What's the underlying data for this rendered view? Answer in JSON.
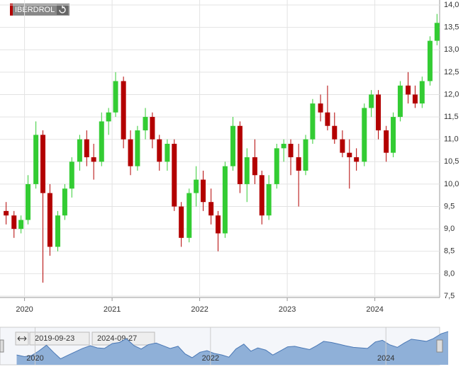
{
  "chart_data": {
    "type": "candlestick",
    "instrument": "IBERDROL",
    "up_color": "#33cc33",
    "down_color": "#b30000",
    "grid": true,
    "xlim": [
      2019.72,
      2024.74
    ],
    "xticks": [
      2020,
      2021,
      2022,
      2023,
      2024
    ],
    "ylim": [
      7.5,
      14.0
    ],
    "yticks": [
      {
        "value": 7.5,
        "label": "7,5"
      },
      {
        "value": 8,
        "label": "8,0"
      },
      {
        "value": 8.5,
        "label": "8,5"
      },
      {
        "value": 9,
        "label": "9,0"
      },
      {
        "value": 9.5,
        "label": "9,5"
      },
      {
        "value": 10,
        "label": "10,0"
      },
      {
        "value": 10.5,
        "label": "10,5"
      },
      {
        "value": 11,
        "label": "11,0"
      },
      {
        "value": 11.5,
        "label": "11,5"
      },
      {
        "value": 12,
        "label": "12,0"
      },
      {
        "value": 12.5,
        "label": "12,5"
      },
      {
        "value": 13,
        "label": "13,0"
      },
      {
        "value": 13.5,
        "label": "13,5"
      },
      {
        "value": 14,
        "label": "14,0"
      }
    ],
    "x": [
      2019.79,
      2019.88,
      2019.96,
      2020.04,
      2020.13,
      2020.21,
      2020.29,
      2020.38,
      2020.46,
      2020.54,
      2020.63,
      2020.71,
      2020.79,
      2020.88,
      2020.96,
      2021.04,
      2021.13,
      2021.21,
      2021.29,
      2021.38,
      2021.46,
      2021.54,
      2021.63,
      2021.71,
      2021.79,
      2021.88,
      2021.96,
      2022.04,
      2022.13,
      2022.21,
      2022.29,
      2022.38,
      2022.46,
      2022.54,
      2022.63,
      2022.71,
      2022.79,
      2022.88,
      2022.96,
      2023.04,
      2023.13,
      2023.21,
      2023.29,
      2023.38,
      2023.46,
      2023.54,
      2023.63,
      2023.71,
      2023.79,
      2023.88,
      2023.96,
      2024.04,
      2024.13,
      2024.21,
      2024.29,
      2024.38,
      2024.46,
      2024.54,
      2024.63,
      2024.71
    ],
    "open": [
      9.4,
      9.3,
      9.0,
      9.2,
      10.0,
      11.1,
      9.8,
      8.6,
      9.3,
      9.9,
      10.5,
      11.0,
      10.6,
      10.5,
      11.4,
      11.6,
      12.3,
      11.0,
      10.4,
      11.2,
      11.5,
      11.0,
      10.5,
      10.9,
      9.5,
      8.8,
      9.8,
      10.1,
      9.6,
      9.3,
      8.9,
      10.4,
      11.3,
      10.0,
      10.6,
      10.2,
      9.3,
      10.0,
      10.8,
      10.9,
      10.6,
      10.3,
      11.0,
      11.8,
      11.6,
      11.3,
      11.0,
      10.7,
      10.6,
      10.5,
      11.7,
      12.0,
      11.2,
      10.7,
      11.5,
      12.2,
      12.0,
      11.8,
      12.3,
      13.2
    ],
    "high": [
      9.6,
      9.4,
      9.3,
      10.2,
      11.4,
      11.2,
      10.0,
      9.4,
      10.0,
      10.6,
      11.1,
      11.2,
      10.9,
      11.6,
      11.7,
      12.5,
      12.4,
      11.2,
      11.3,
      11.7,
      11.6,
      11.1,
      11.0,
      11.0,
      9.6,
      9.9,
      10.4,
      10.3,
      9.9,
      9.4,
      10.5,
      11.5,
      11.4,
      10.8,
      11.0,
      10.3,
      10.2,
      10.9,
      11.0,
      11.0,
      10.9,
      11.1,
      11.9,
      12.0,
      12.2,
      11.6,
      11.2,
      11.0,
      10.8,
      11.8,
      12.1,
      12.1,
      11.3,
      11.6,
      12.3,
      12.5,
      12.2,
      12.4,
      13.3,
      13.8
    ],
    "low": [
      9.1,
      8.8,
      8.9,
      9.1,
      9.9,
      7.8,
      8.4,
      8.5,
      9.2,
      9.7,
      10.3,
      10.4,
      10.1,
      10.4,
      11.1,
      11.5,
      10.8,
      10.2,
      10.3,
      11.0,
      10.8,
      10.3,
      10.3,
      9.4,
      8.6,
      8.7,
      9.5,
      9.4,
      9.1,
      8.5,
      8.8,
      10.3,
      9.8,
      9.6,
      10.0,
      9.1,
      9.2,
      9.9,
      10.5,
      10.2,
      9.5,
      10.2,
      10.9,
      11.4,
      11.2,
      10.9,
      10.6,
      9.9,
      10.3,
      10.4,
      11.5,
      11.0,
      10.5,
      10.6,
      11.4,
      11.8,
      11.7,
      11.7,
      12.2,
      13.1
    ],
    "close": [
      9.3,
      9.0,
      9.2,
      10.0,
      11.1,
      9.8,
      8.6,
      9.3,
      9.9,
      10.5,
      11.0,
      10.6,
      10.5,
      11.4,
      11.6,
      12.3,
      11.0,
      10.4,
      11.2,
      11.5,
      11.0,
      10.5,
      10.9,
      9.5,
      8.8,
      9.8,
      10.1,
      9.6,
      9.3,
      8.9,
      10.4,
      11.3,
      10.0,
      10.6,
      10.2,
      9.3,
      10.0,
      10.8,
      10.9,
      10.6,
      10.3,
      11.0,
      11.8,
      11.6,
      11.3,
      11.0,
      10.7,
      10.6,
      10.5,
      11.7,
      12.0,
      11.2,
      10.7,
      11.5,
      12.2,
      12.0,
      11.8,
      12.3,
      13.2,
      13.6
    ]
  },
  "navigator": {
    "start": "2019-09-23",
    "end": "2024-09-27",
    "xlim": [
      2019.6,
      2024.75
    ],
    "xticks": [
      2020,
      2022,
      2024
    ]
  }
}
